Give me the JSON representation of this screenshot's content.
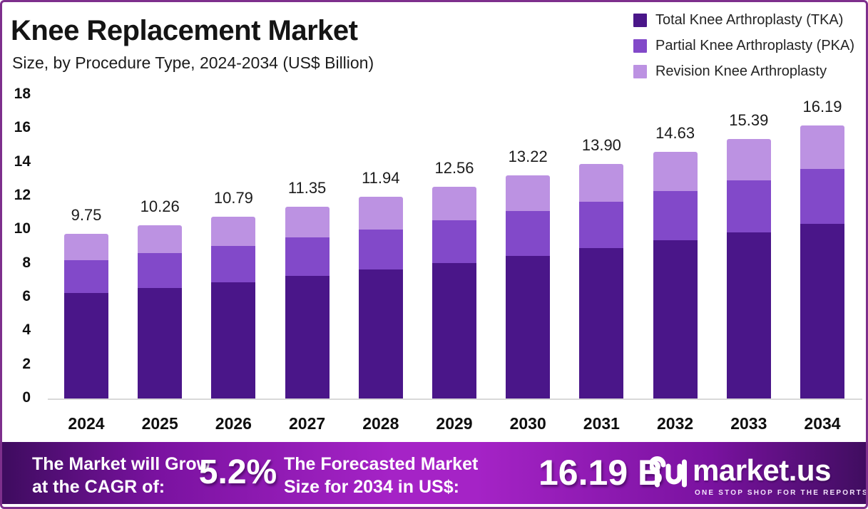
{
  "header": {
    "title": "Knee Replacement Market",
    "subtitle": "Size, by Procedure Type, 2024-2034 (US$ Billion)"
  },
  "legend": [
    {
      "label": "Total Knee Arthroplasty (TKA)",
      "color": "#4A1689"
    },
    {
      "label": "Partial Knee Arthroplasty (PKA)",
      "color": "#8249C9"
    },
    {
      "label": "Revision Knee Arthroplasty",
      "color": "#BC92E2"
    }
  ],
  "chart_data": {
    "type": "bar",
    "stacked": true,
    "title": "Knee Replacement Market Size, by Procedure Type, 2024-2034 (US$ Billion)",
    "xlabel": "",
    "ylabel": "US$ Billion",
    "ylim": [
      0,
      18
    ],
    "yticks": [
      0,
      2,
      4,
      6,
      8,
      10,
      12,
      14,
      16,
      18
    ],
    "grid": false,
    "legend_position": "top-right",
    "categories": [
      "2024",
      "2025",
      "2026",
      "2027",
      "2028",
      "2029",
      "2030",
      "2031",
      "2032",
      "2033",
      "2034"
    ],
    "series": [
      {
        "name": "Total Knee Arthroplasty (TKA)",
        "color": "#4A1689",
        "values": [
          6.24,
          6.57,
          6.9,
          7.26,
          7.64,
          8.04,
          8.46,
          8.9,
          9.36,
          9.85,
          10.36
        ]
      },
      {
        "name": "Partial Knee Arthroplasty (PKA)",
        "color": "#8249C9",
        "values": [
          1.95,
          2.05,
          2.16,
          2.27,
          2.39,
          2.51,
          2.64,
          2.78,
          2.93,
          3.08,
          3.24
        ]
      },
      {
        "name": "Revision Knee Arthroplasty",
        "color": "#BC92E2",
        "values": [
          1.56,
          1.64,
          1.73,
          1.82,
          1.91,
          2.01,
          2.12,
          2.22,
          2.34,
          2.46,
          2.59
        ]
      }
    ],
    "totals": [
      9.75,
      10.26,
      10.79,
      11.35,
      11.94,
      12.56,
      13.22,
      13.9,
      14.63,
      15.39,
      16.19
    ]
  },
  "footer": {
    "growth_line1": "The Market will Grow",
    "growth_line2": "at the CAGR of:",
    "cagr_value": "5.2%",
    "forecast_line1": "The Forecasted Market",
    "forecast_line2": "Size for 2034 in US$:",
    "forecast_value": "16.19 B",
    "brand_name": "market.us",
    "brand_tagline": "ONE STOP SHOP FOR THE REPORTS"
  },
  "colors": {
    "page_border": "#7E2F8C",
    "banner_edge": "#3E0C5F",
    "banner_center": "#A523C6",
    "baseline": "#D9D9D9"
  }
}
